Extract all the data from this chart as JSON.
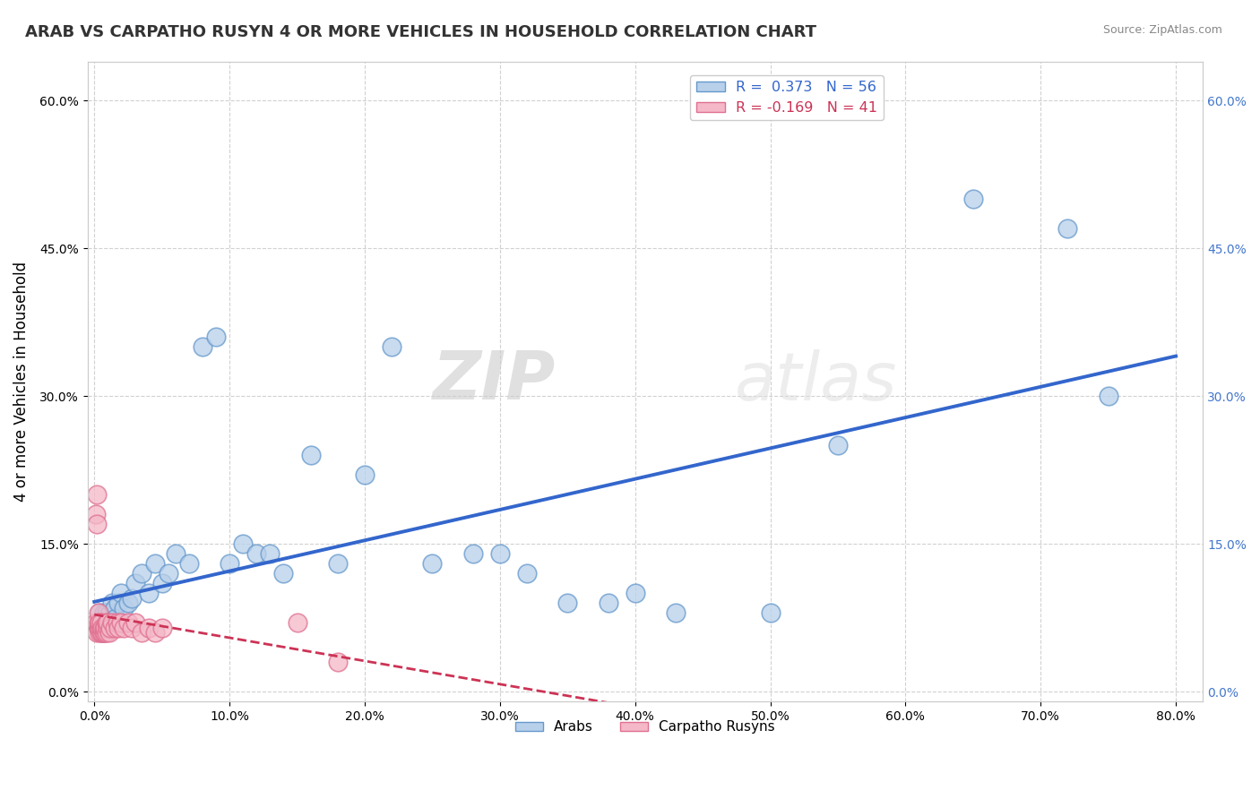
{
  "title": "ARAB VS CARPATHO RUSYN 4 OR MORE VEHICLES IN HOUSEHOLD CORRELATION CHART",
  "source": "Source: ZipAtlas.com",
  "ylabel": "4 or more Vehicles in Household",
  "xlim": [
    -0.005,
    0.82
  ],
  "ylim": [
    -0.01,
    0.64
  ],
  "xticks": [
    0.0,
    0.1,
    0.2,
    0.3,
    0.4,
    0.5,
    0.6,
    0.7,
    0.8
  ],
  "xticklabels": [
    "0.0%",
    "10.0%",
    "20.0%",
    "30.0%",
    "40.0%",
    "50.0%",
    "60.0%",
    "70.0%",
    "80.0%"
  ],
  "yticks": [
    0.0,
    0.15,
    0.3,
    0.45,
    0.6
  ],
  "yticklabels": [
    "0.0%",
    "15.0%",
    "30.0%",
    "45.0%",
    "60.0%"
  ],
  "arab_R": 0.373,
  "arab_N": 56,
  "rusyn_R": -0.169,
  "rusyn_N": 41,
  "arab_fill": "#b8d0ea",
  "arab_edge": "#6699cc",
  "rusyn_fill": "#f4b8c8",
  "rusyn_edge": "#e07090",
  "arab_line": "#3366cc",
  "rusyn_line": "#cc3355",
  "legend_arab": "Arabs",
  "legend_rusyn": "Carpatho Rusyns",
  "watermark_zip": "ZIP",
  "watermark_atlas": "atlas",
  "bg": "#ffffff",
  "grid_color": "#cccccc",
  "arab_x": [
    0.003,
    0.004,
    0.004,
    0.005,
    0.005,
    0.006,
    0.006,
    0.007,
    0.007,
    0.008,
    0.008,
    0.009,
    0.009,
    0.01,
    0.01,
    0.012,
    0.013,
    0.015,
    0.016,
    0.018,
    0.02,
    0.022,
    0.025,
    0.028,
    0.03,
    0.035,
    0.04,
    0.045,
    0.05,
    0.055,
    0.06,
    0.07,
    0.08,
    0.09,
    0.1,
    0.11,
    0.12,
    0.13,
    0.14,
    0.16,
    0.18,
    0.2,
    0.22,
    0.25,
    0.28,
    0.3,
    0.32,
    0.35,
    0.38,
    0.4,
    0.43,
    0.5,
    0.55,
    0.65,
    0.72,
    0.75
  ],
  "arab_y": [
    0.065,
    0.07,
    0.08,
    0.06,
    0.07,
    0.065,
    0.075,
    0.06,
    0.08,
    0.07,
    0.075,
    0.065,
    0.08,
    0.07,
    0.065,
    0.08,
    0.09,
    0.085,
    0.075,
    0.09,
    0.1,
    0.085,
    0.09,
    0.095,
    0.11,
    0.12,
    0.1,
    0.13,
    0.11,
    0.12,
    0.14,
    0.13,
    0.35,
    0.36,
    0.13,
    0.15,
    0.14,
    0.14,
    0.12,
    0.24,
    0.13,
    0.22,
    0.35,
    0.13,
    0.14,
    0.14,
    0.12,
    0.09,
    0.09,
    0.1,
    0.08,
    0.08,
    0.25,
    0.5,
    0.47,
    0.3
  ],
  "rusyn_x": [
    0.001,
    0.001,
    0.002,
    0.002,
    0.002,
    0.003,
    0.003,
    0.003,
    0.004,
    0.004,
    0.004,
    0.005,
    0.005,
    0.005,
    0.006,
    0.006,
    0.007,
    0.007,
    0.008,
    0.008,
    0.009,
    0.009,
    0.01,
    0.01,
    0.011,
    0.012,
    0.013,
    0.015,
    0.017,
    0.018,
    0.02,
    0.022,
    0.025,
    0.028,
    0.03,
    0.035,
    0.04,
    0.045,
    0.05,
    0.15,
    0.18
  ],
  "rusyn_y": [
    0.07,
    0.18,
    0.17,
    0.2,
    0.06,
    0.065,
    0.07,
    0.08,
    0.06,
    0.065,
    0.07,
    0.06,
    0.065,
    0.07,
    0.06,
    0.065,
    0.06,
    0.065,
    0.06,
    0.065,
    0.06,
    0.07,
    0.065,
    0.07,
    0.06,
    0.065,
    0.07,
    0.065,
    0.07,
    0.065,
    0.07,
    0.065,
    0.07,
    0.065,
    0.07,
    0.06,
    0.065,
    0.06,
    0.065,
    0.07,
    0.03
  ]
}
